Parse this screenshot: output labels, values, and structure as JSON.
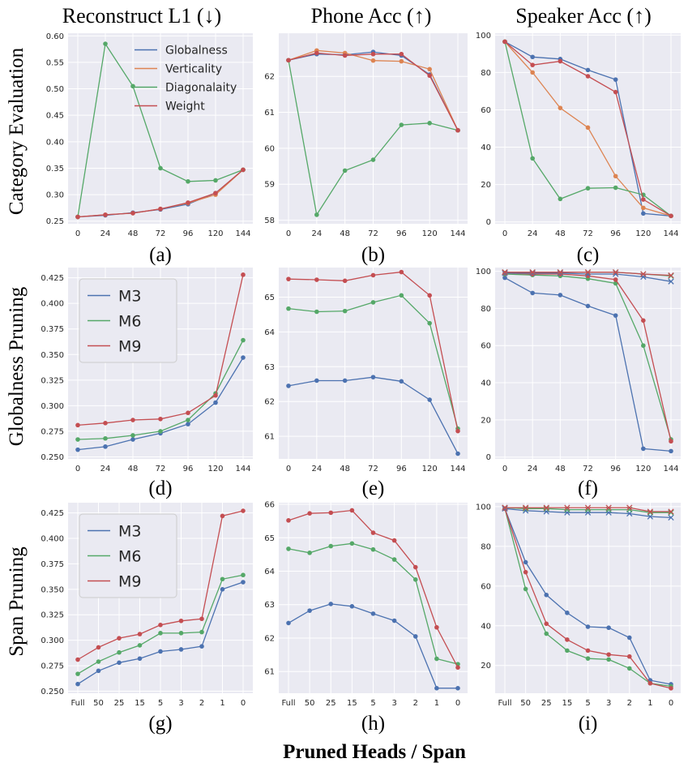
{
  "figure": {
    "column_titles": [
      "Reconstruct L1 (↓)",
      "Phone Acc (↑)",
      "Speaker Acc (↑)"
    ],
    "row_titles": [
      "Category Evaluation",
      "Globalness Pruning",
      "Span Pruning"
    ],
    "x_axis_title": "Pruned Heads / Span"
  },
  "colors": {
    "blue": "#4c72b0",
    "orange": "#dd8452",
    "green": "#55a868",
    "red": "#c44e52",
    "plot_bg": "#eaeaf2",
    "grid": "#ffffff",
    "tick_text": "#262626"
  },
  "chart_data": [
    {
      "id": "a",
      "label": "(a)",
      "type": "line",
      "x": [
        "0",
        "24",
        "48",
        "72",
        "96",
        "120",
        "144"
      ],
      "ylim": [
        0.245,
        0.605
      ],
      "yticks": [
        0.25,
        0.3,
        0.35,
        0.4,
        0.45,
        0.5,
        0.55,
        0.6
      ],
      "ydec": 2,
      "legend": "top-right",
      "legend_size": "small",
      "series": [
        {
          "name": "Globalness",
          "color": "#4c72b0",
          "values": [
            0.258,
            0.261,
            0.266,
            0.272,
            0.282,
            0.303,
            0.347
          ]
        },
        {
          "name": "Verticality",
          "color": "#dd8452",
          "values": [
            0.258,
            0.262,
            0.265,
            0.273,
            0.284,
            0.3,
            0.347
          ]
        },
        {
          "name": "Diagonalaity",
          "color": "#55a868",
          "values": [
            0.258,
            0.585,
            0.505,
            0.35,
            0.325,
            0.327,
            0.347
          ]
        },
        {
          "name": "Weight",
          "color": "#c44e52",
          "values": [
            0.258,
            0.262,
            0.265,
            0.273,
            0.285,
            0.303,
            0.347
          ]
        }
      ]
    },
    {
      "id": "b",
      "label": "(b)",
      "type": "line",
      "x": [
        "0",
        "24",
        "48",
        "72",
        "96",
        "120",
        "144"
      ],
      "ylim": [
        57.9,
        63.2
      ],
      "yticks": [
        58,
        59,
        60,
        61,
        62
      ],
      "ydec": 0,
      "legend": "none",
      "series": [
        {
          "name": "Globalness",
          "color": "#4c72b0",
          "values": [
            62.45,
            62.62,
            62.6,
            62.68,
            62.58,
            62.05,
            60.5
          ]
        },
        {
          "name": "Verticality",
          "color": "#dd8452",
          "values": [
            62.45,
            62.72,
            62.65,
            62.44,
            62.42,
            62.2,
            60.5
          ]
        },
        {
          "name": "Diagonalaity",
          "color": "#55a868",
          "values": [
            62.45,
            58.15,
            59.38,
            59.68,
            60.65,
            60.7,
            60.5
          ]
        },
        {
          "name": "Weight",
          "color": "#c44e52",
          "values": [
            62.45,
            62.65,
            62.58,
            62.62,
            62.62,
            62.02,
            60.5
          ]
        }
      ]
    },
    {
      "id": "c",
      "label": "(c)",
      "type": "line",
      "x": [
        "0",
        "24",
        "48",
        "72",
        "96",
        "120",
        "144"
      ],
      "ylim": [
        -1,
        101
      ],
      "yticks": [
        0,
        20,
        40,
        60,
        80,
        100
      ],
      "ydec": 0,
      "legend": "none",
      "series": [
        {
          "name": "Globalness",
          "color": "#4c72b0",
          "values": [
            96.5,
            88.3,
            87.2,
            81.3,
            76.2,
            4.5,
            3.2
          ]
        },
        {
          "name": "Verticality",
          "color": "#dd8452",
          "values": [
            96.5,
            80.0,
            61.0,
            50.5,
            24.5,
            7.5,
            3.2
          ]
        },
        {
          "name": "Diagonalaity",
          "color": "#55a868",
          "values": [
            96.5,
            34.0,
            12.3,
            18.0,
            18.3,
            14.5,
            3.2
          ]
        },
        {
          "name": "Weight",
          "color": "#c44e52",
          "values": [
            96.5,
            84.0,
            86.0,
            78.0,
            69.5,
            12.0,
            3.2
          ]
        }
      ]
    },
    {
      "id": "d",
      "label": "(d)",
      "type": "line",
      "x": [
        "0",
        "24",
        "48",
        "72",
        "96",
        "120",
        "144"
      ],
      "ylim": [
        0.248,
        0.435
      ],
      "yticks": [
        0.25,
        0.275,
        0.3,
        0.325,
        0.35,
        0.375,
        0.4,
        0.425
      ],
      "ydec": 3,
      "legend": "top-left",
      "legend_size": "large",
      "series": [
        {
          "name": "M3",
          "color": "#4c72b0",
          "values": [
            0.257,
            0.26,
            0.267,
            0.273,
            0.282,
            0.303,
            0.347
          ]
        },
        {
          "name": "M6",
          "color": "#55a868",
          "values": [
            0.267,
            0.268,
            0.271,
            0.275,
            0.286,
            0.312,
            0.364
          ]
        },
        {
          "name": "M9",
          "color": "#c44e52",
          "values": [
            0.281,
            0.283,
            0.286,
            0.287,
            0.293,
            0.31,
            0.428
          ]
        }
      ]
    },
    {
      "id": "e",
      "label": "(e)",
      "type": "line",
      "x": [
        "0",
        "24",
        "48",
        "72",
        "96",
        "120",
        "144"
      ],
      "ylim": [
        60.35,
        65.85
      ],
      "yticks": [
        61,
        62,
        63,
        64,
        65
      ],
      "ydec": 0,
      "legend": "none",
      "series": [
        {
          "name": "M3",
          "color": "#4c72b0",
          "values": [
            62.45,
            62.6,
            62.6,
            62.7,
            62.58,
            62.05,
            60.5
          ]
        },
        {
          "name": "M6",
          "color": "#55a868",
          "values": [
            64.67,
            64.58,
            64.6,
            64.85,
            65.05,
            64.25,
            61.22
          ]
        },
        {
          "name": "M9",
          "color": "#c44e52",
          "values": [
            65.52,
            65.5,
            65.47,
            65.63,
            65.72,
            65.05,
            61.15
          ]
        }
      ]
    },
    {
      "id": "f",
      "label": "(f)",
      "type": "line",
      "x": [
        "0",
        "24",
        "48",
        "72",
        "96",
        "120",
        "144"
      ],
      "ylim": [
        -1,
        102
      ],
      "yticks": [
        0,
        20,
        40,
        60,
        80,
        100
      ],
      "ydec": 0,
      "legend": "none",
      "series": [
        {
          "name": "M3",
          "color": "#4c72b0",
          "marker": "circle",
          "values": [
            96.5,
            88.3,
            87.2,
            81.3,
            76.2,
            4.5,
            3.2
          ]
        },
        {
          "name": "M6",
          "color": "#55a868",
          "marker": "circle",
          "values": [
            98.5,
            98.0,
            97.5,
            96.0,
            93.5,
            60.0,
            9.5
          ]
        },
        {
          "name": "M9",
          "color": "#c44e52",
          "marker": "circle",
          "values": [
            99.0,
            98.5,
            98.5,
            97.5,
            95.5,
            73.5,
            8.5
          ]
        },
        {
          "name": "M3 (x)",
          "color": "#4c72b0",
          "marker": "x",
          "values": [
            99.0,
            99.0,
            99.0,
            98.5,
            98.5,
            97.0,
            94.5
          ]
        },
        {
          "name": "M6 (x)",
          "color": "#55a868",
          "marker": "x",
          "values": [
            99.5,
            99.5,
            99.5,
            99.5,
            99.5,
            98.5,
            97.5
          ]
        },
        {
          "name": "M9 (x)",
          "color": "#c44e52",
          "marker": "x",
          "values": [
            99.5,
            99.5,
            99.5,
            99.5,
            99.5,
            98.5,
            97.8
          ]
        }
      ]
    },
    {
      "id": "g",
      "label": "(g)",
      "type": "line",
      "x": [
        "Full",
        "50",
        "25",
        "15",
        "5",
        "3",
        "2",
        "1",
        "0"
      ],
      "ylim": [
        0.248,
        0.435
      ],
      "yticks": [
        0.25,
        0.275,
        0.3,
        0.325,
        0.35,
        0.375,
        0.4,
        0.425
      ],
      "ydec": 3,
      "legend": "top-left",
      "legend_size": "large",
      "series": [
        {
          "name": "M3",
          "color": "#4c72b0",
          "values": [
            0.257,
            0.27,
            0.278,
            0.282,
            0.289,
            0.291,
            0.294,
            0.35,
            0.357
          ]
        },
        {
          "name": "M6",
          "color": "#55a868",
          "values": [
            0.267,
            0.279,
            0.288,
            0.295,
            0.307,
            0.307,
            0.308,
            0.36,
            0.364
          ]
        },
        {
          "name": "M9",
          "color": "#c44e52",
          "values": [
            0.281,
            0.293,
            0.302,
            0.306,
            0.315,
            0.319,
            0.321,
            0.422,
            0.427
          ]
        }
      ]
    },
    {
      "id": "h",
      "label": "(h)",
      "type": "line",
      "x": [
        "Full",
        "50",
        "25",
        "15",
        "5",
        "3",
        "2",
        "1",
        "0"
      ],
      "ylim": [
        60.35,
        66.05
      ],
      "yticks": [
        61,
        62,
        63,
        64,
        65,
        66
      ],
      "ydec": 0,
      "legend": "none",
      "series": [
        {
          "name": "M3",
          "color": "#4c72b0",
          "values": [
            62.45,
            62.82,
            63.02,
            62.95,
            62.73,
            62.52,
            62.05,
            60.5,
            60.5
          ]
        },
        {
          "name": "M6",
          "color": "#55a868",
          "values": [
            64.67,
            64.55,
            64.75,
            64.83,
            64.65,
            64.35,
            63.75,
            61.38,
            61.22
          ]
        },
        {
          "name": "M9",
          "color": "#c44e52",
          "values": [
            65.52,
            65.73,
            65.75,
            65.82,
            65.15,
            64.92,
            64.12,
            62.32,
            61.12
          ]
        }
      ]
    },
    {
      "id": "i",
      "label": "(i)",
      "type": "line",
      "x": [
        "Full",
        "50",
        "25",
        "15",
        "5",
        "3",
        "2",
        "1",
        "0"
      ],
      "ylim": [
        6,
        102
      ],
      "yticks": [
        20,
        40,
        60,
        80,
        100
      ],
      "ydec": 0,
      "legend": "none",
      "series": [
        {
          "name": "M3",
          "color": "#4c72b0",
          "marker": "circle",
          "values": [
            99.0,
            72.0,
            55.5,
            46.5,
            39.5,
            39.0,
            34.0,
            12.5,
            10.5
          ]
        },
        {
          "name": "M6",
          "color": "#55a868",
          "marker": "circle",
          "values": [
            99.0,
            58.5,
            36.0,
            27.5,
            23.5,
            23.0,
            18.5,
            11.0,
            9.5
          ]
        },
        {
          "name": "M9",
          "color": "#c44e52",
          "marker": "circle",
          "values": [
            99.0,
            67.0,
            41.0,
            33.0,
            27.5,
            25.5,
            24.5,
            11.0,
            8.5
          ]
        },
        {
          "name": "M3 (x)",
          "color": "#4c72b0",
          "marker": "x",
          "values": [
            99.0,
            98.0,
            97.5,
            97.0,
            97.0,
            97.0,
            96.5,
            95.0,
            94.5
          ]
        },
        {
          "name": "M6 (x)",
          "color": "#55a868",
          "marker": "x",
          "values": [
            99.5,
            99.0,
            99.0,
            98.5,
            98.5,
            98.5,
            98.5,
            97.0,
            97.0
          ]
        },
        {
          "name": "M9 (x)",
          "color": "#c44e52",
          "marker": "x",
          "values": [
            99.5,
            99.5,
            99.5,
            99.5,
            99.5,
            99.5,
            99.5,
            97.5,
            97.5
          ]
        }
      ]
    }
  ]
}
